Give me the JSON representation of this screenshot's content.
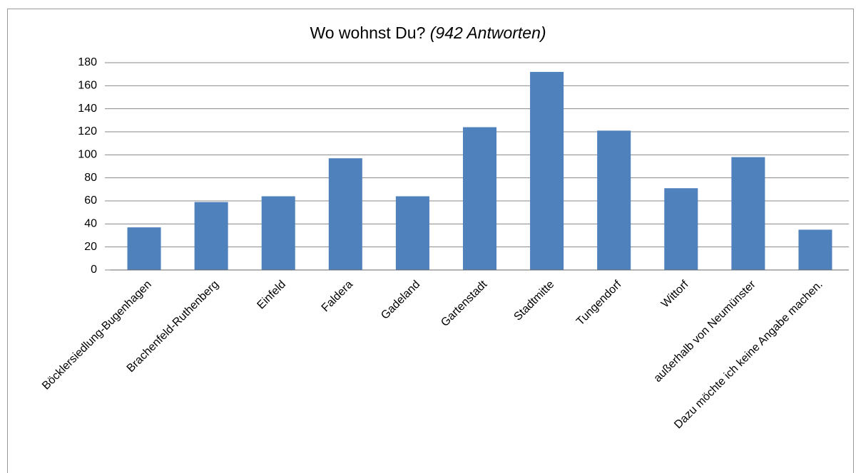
{
  "chart_data": {
    "type": "bar",
    "title": "Wo wohnst Du?",
    "subtitle": "(942 Antworten)",
    "categories": [
      "Böcklersiedlung-Bugenhagen",
      "Brachenfeld-Ruthenberg",
      "Einfeld",
      "Faldera",
      "Gadeland",
      "Gartenstadt",
      "Stadtmitte",
      "Tungendorf",
      "Wittorf",
      "außerhalb von Neumünster",
      "Dazu möchte ich keine Angabe machen."
    ],
    "values": [
      37,
      59,
      64,
      97,
      64,
      124,
      172,
      121,
      71,
      98,
      35
    ],
    "color": "#4f81bd",
    "ylim": [
      0,
      180
    ],
    "yticks": [
      0,
      20,
      40,
      60,
      80,
      100,
      120,
      140,
      160,
      180
    ],
    "grid": true
  }
}
